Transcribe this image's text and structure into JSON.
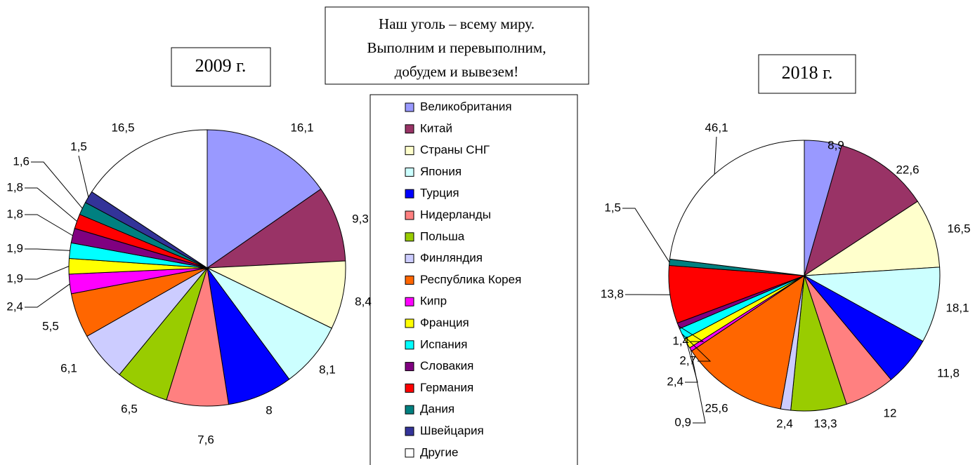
{
  "annotation": [
    "Наш уголь – всему миру.",
    "Выполним и перевыполним,",
    "добудем и вывезем!"
  ],
  "chart_data": [
    {
      "type": "pie",
      "title": "2009 г.",
      "categories": [
        "Великобритания",
        "Китай",
        "Страны СНГ",
        "Япония",
        "Турция",
        "Нидерланды",
        "Польша",
        "Финляндия",
        "Республика Корея",
        "Кипр",
        "Франция",
        "Испания",
        "Словакия",
        "Германия",
        "Дания",
        "Швейцария",
        "Другие"
      ],
      "colors": [
        "#9999ff",
        "#993366",
        "#ffffcc",
        "#ccffff",
        "#0000ff",
        "#ff8080",
        "#99cc00",
        "#ccccff",
        "#ff6600",
        "#ff00ff",
        "#ffff00",
        "#00ffff",
        "#800080",
        "#ff0000",
        "#008080",
        "#333399",
        "#ffffff"
      ],
      "values": [
        16.1,
        9.3,
        8.4,
        8.1,
        8,
        7.6,
        6.5,
        6.1,
        5.5,
        2.4,
        1.9,
        1.9,
        1.8,
        1.8,
        1.6,
        1.5,
        16.5
      ],
      "value_labels": [
        "16,1",
        "9,3",
        "8,4",
        "8,1",
        "8",
        "7,6",
        "6,5",
        "6,1",
        "5,5",
        "2,4",
        "1,9",
        "1,9",
        "1,8",
        "1,8",
        "1,6",
        "1,5",
        "16,5"
      ]
    },
    {
      "type": "pie",
      "title": "2018 г.",
      "values": [
        8.9,
        22.6,
        16.5,
        18.1,
        11.8,
        12,
        13.3,
        2.4,
        25.6,
        0.9,
        2.4,
        2.7,
        1.4,
        13.8,
        1.5,
        null,
        46.1
      ],
      "value_labels": [
        "8,9",
        "22,6",
        "16,5",
        "18,1",
        "11,8",
        "12",
        "13,3",
        "2,4",
        "25,6",
        "0,9",
        "2,4",
        "2,7",
        "1,4",
        "13,8",
        "1,5",
        null,
        "46,1"
      ]
    }
  ]
}
